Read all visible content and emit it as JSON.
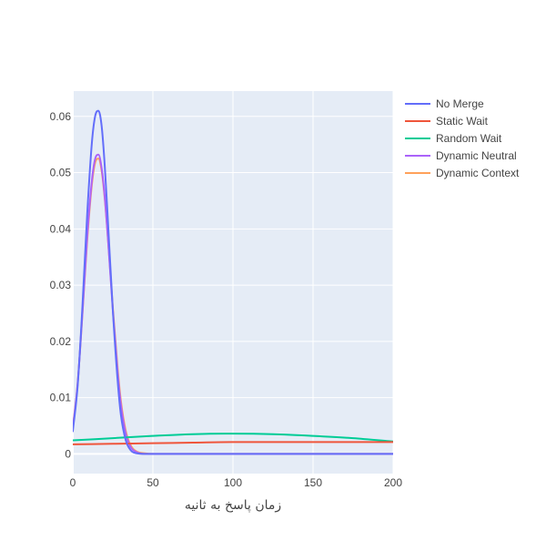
{
  "chart_data": {
    "type": "line",
    "title": "",
    "xlabel": "زمان پاسخ به ثانیه",
    "ylabel": "",
    "xlim": [
      0,
      200
    ],
    "ylim": [
      -0.0035,
      0.0645
    ],
    "x_ticks": [
      0,
      50,
      100,
      150,
      200
    ],
    "x_tick_labels": [
      "0",
      "50",
      "100",
      "150",
      "200"
    ],
    "y_ticks": [
      0,
      0.01,
      0.02,
      0.03,
      0.04,
      0.05,
      0.06
    ],
    "y_tick_labels": [
      "0",
      "0.01",
      "0.02",
      "0.03",
      "0.04",
      "0.05",
      "0.06"
    ],
    "grid": true,
    "legend_position": "top-right",
    "plot_background": "#E5ECF6",
    "series": [
      {
        "name": "No Merge",
        "color": "#636EFA",
        "x": [
          0,
          3,
          6,
          9,
          12,
          14,
          16,
          18,
          20,
          22,
          25,
          28,
          30,
          33,
          36,
          40,
          45,
          50,
          60,
          100,
          150,
          200
        ],
        "y": [
          0.004,
          0.012,
          0.0262,
          0.0427,
          0.0556,
          0.0601,
          0.061,
          0.0583,
          0.051,
          0.041,
          0.0255,
          0.013,
          0.007,
          0.0025,
          0.0007,
          0.0001,
          0.0,
          0.0,
          0.0,
          0.0,
          0.0,
          0.0
        ]
      },
      {
        "name": "Static Wait",
        "color": "#EF553B",
        "x": [
          0,
          25,
          50,
          75,
          100,
          125,
          150,
          175,
          200
        ],
        "y": [
          0.0017,
          0.0018,
          0.0019,
          0.002,
          0.0021,
          0.0021,
          0.0021,
          0.0021,
          0.0021
        ]
      },
      {
        "name": "Random Wait",
        "color": "#00CC96",
        "x": [
          0,
          25,
          50,
          75,
          95,
          125,
          150,
          175,
          200
        ],
        "y": [
          0.0024,
          0.0028,
          0.0032,
          0.0035,
          0.0036,
          0.0035,
          0.0032,
          0.0028,
          0.0022
        ]
      },
      {
        "name": "Dynamic Neutral",
        "color": "#AB63FA",
        "x": [
          0,
          3,
          6,
          9,
          12,
          14,
          16,
          18,
          20,
          22,
          25,
          28,
          30,
          33,
          36,
          40,
          45,
          50,
          60,
          100,
          150,
          200
        ],
        "y": [
          0.0045,
          0.0124,
          0.025,
          0.0386,
          0.0488,
          0.0525,
          0.0532,
          0.0508,
          0.0455,
          0.038,
          0.0255,
          0.0145,
          0.0088,
          0.0037,
          0.0013,
          0.0003,
          0.0,
          0.0,
          0.0,
          0.0,
          0.0,
          0.0
        ]
      },
      {
        "name": "Dynamic Context",
        "color": "#FFA15A",
        "x": [
          0,
          3,
          6,
          9,
          12,
          14,
          16,
          18,
          20,
          22,
          25,
          28,
          30,
          33,
          36,
          40,
          45,
          50,
          60,
          100,
          150,
          200
        ],
        "y": [
          0.0047,
          0.0125,
          0.0248,
          0.038,
          0.0481,
          0.0518,
          0.0525,
          0.0503,
          0.0452,
          0.038,
          0.026,
          0.0152,
          0.0095,
          0.0042,
          0.0016,
          0.0004,
          0.0001,
          0.0,
          0.0,
          0.0,
          0.0,
          0.0
        ]
      }
    ]
  }
}
